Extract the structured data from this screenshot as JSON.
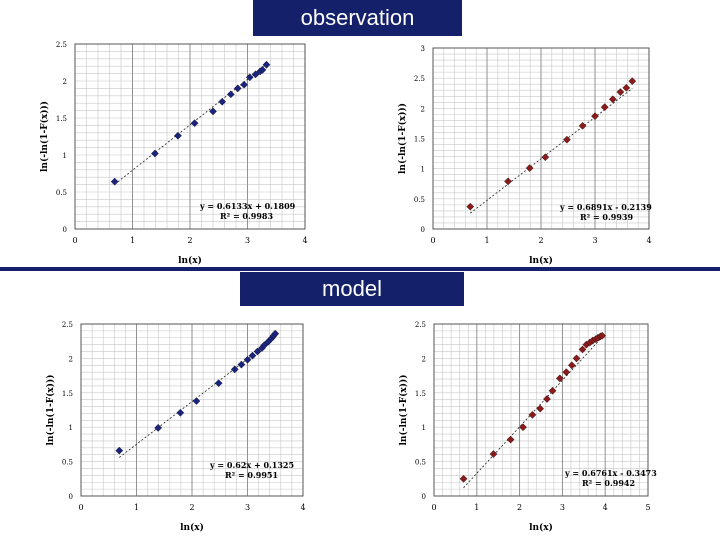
{
  "banners": {
    "top": "observation",
    "middle": "model"
  },
  "colors": {
    "banner": "#14216a",
    "series_blue": "#1a237e",
    "series_red": "#8b1a1a"
  },
  "chart_data": [
    {
      "type": "scatter",
      "title": "",
      "xlabel": "ln(x)",
      "ylabel": "ln(-ln(1-F(x)))",
      "xlim": [
        0,
        4
      ],
      "ylim": [
        0,
        2.5
      ],
      "xticks": [
        "0",
        "1",
        "2",
        "3",
        "4"
      ],
      "yticks": [
        "0",
        "0.5",
        "1",
        "1.5",
        "2",
        "2.5"
      ],
      "grid": true,
      "color": "#1a237e",
      "x": [
        0.69,
        1.39,
        1.79,
        2.08,
        2.4,
        2.56,
        2.71,
        2.83,
        2.94,
        3.04,
        3.14,
        3.22,
        3.26,
        3.33
      ],
      "y": [
        0.64,
        1.02,
        1.26,
        1.43,
        1.59,
        1.72,
        1.82,
        1.9,
        1.95,
        2.05,
        2.09,
        2.13,
        2.15,
        2.22
      ],
      "trendline": {
        "slope": 0.6133,
        "intercept": 0.1809,
        "equation": "y = 0.6133x + 0.1809",
        "r2": "R² = 0.9983"
      }
    },
    {
      "type": "scatter",
      "title": "",
      "xlabel": "ln(x)",
      "ylabel": "ln(-ln(1-F(x)))",
      "xlim": [
        0,
        4
      ],
      "ylim": [
        0,
        3
      ],
      "xticks": [
        "0",
        "1",
        "2",
        "3",
        "4"
      ],
      "yticks": [
        "0",
        "0.5",
        "1",
        "1.5",
        "2",
        "2.5",
        "3"
      ],
      "grid": true,
      "color": "#8b1a1a",
      "x": [
        0.69,
        1.39,
        1.79,
        2.08,
        2.48,
        2.77,
        3.0,
        3.18,
        3.33,
        3.47,
        3.58,
        3.69
      ],
      "y": [
        0.37,
        0.79,
        1.01,
        1.19,
        1.48,
        1.71,
        1.87,
        2.02,
        2.15,
        2.27,
        2.34,
        2.45
      ],
      "trendline": {
        "slope": 0.6891,
        "intercept": -0.2139,
        "equation": "y = 0.6891x - 0.2139",
        "r2": "R² = 0.9939"
      }
    },
    {
      "type": "scatter",
      "title": "",
      "xlabel": "ln(x)",
      "ylabel": "ln(-ln(1-F(x)))",
      "xlim": [
        0,
        4
      ],
      "ylim": [
        0,
        2.5
      ],
      "xticks": [
        "0",
        "1",
        "2",
        "3",
        "4"
      ],
      "yticks": [
        "0",
        "0.5",
        "1",
        "1.5",
        "2",
        "2.5"
      ],
      "grid": true,
      "color": "#1a237e",
      "x": [
        0.69,
        1.39,
        1.79,
        2.08,
        2.48,
        2.77,
        2.89,
        3.0,
        3.09,
        3.18,
        3.26,
        3.3,
        3.37,
        3.43,
        3.47,
        3.5
      ],
      "y": [
        0.66,
        0.99,
        1.21,
        1.38,
        1.64,
        1.84,
        1.91,
        1.98,
        2.04,
        2.1,
        2.15,
        2.19,
        2.24,
        2.29,
        2.33,
        2.36
      ],
      "trendline": {
        "slope": 0.62,
        "intercept": 0.1325,
        "equation": "y = 0.62x + 0.1325",
        "r2": "R² = 0.9951"
      }
    },
    {
      "type": "scatter",
      "title": "",
      "xlabel": "ln(x)",
      "ylabel": "ln(-ln(1-F(x)))",
      "xlim": [
        0,
        5
      ],
      "ylim": [
        0,
        2.5
      ],
      "xticks": [
        "0",
        "1",
        "2",
        "3",
        "4",
        "5"
      ],
      "yticks": [
        "0",
        "0.5",
        "1",
        "1.5",
        "2",
        "2.5"
      ],
      "grid": true,
      "color": "#8b1a1a",
      "x": [
        0.69,
        1.39,
        1.79,
        2.08,
        2.3,
        2.48,
        2.64,
        2.77,
        2.94,
        3.09,
        3.22,
        3.33,
        3.47,
        3.56,
        3.64,
        3.71,
        3.78,
        3.83,
        3.89,
        3.93
      ],
      "y": [
        0.25,
        0.61,
        0.82,
        1.0,
        1.18,
        1.27,
        1.41,
        1.53,
        1.71,
        1.8,
        1.9,
        2.0,
        2.13,
        2.2,
        2.23,
        2.26,
        2.28,
        2.3,
        2.32,
        2.33
      ],
      "trendline": {
        "slope": 0.6761,
        "intercept": -0.3473,
        "equation": "y = 0.6761x - 0.3473",
        "r2": "R² = 0.9942"
      }
    }
  ]
}
